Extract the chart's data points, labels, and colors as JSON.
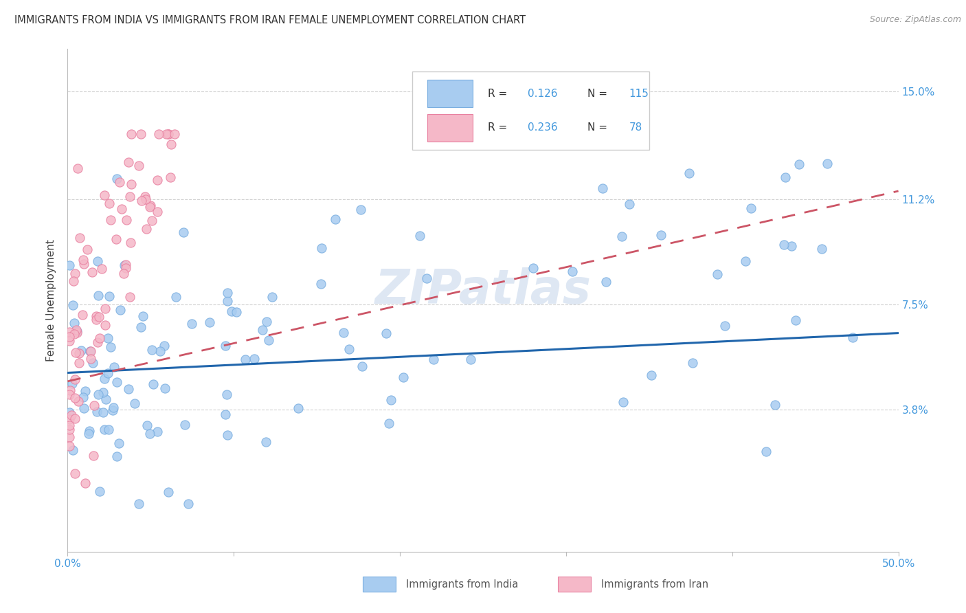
{
  "title": "IMMIGRANTS FROM INDIA VS IMMIGRANTS FROM IRAN FEMALE UNEMPLOYMENT CORRELATION CHART",
  "source": "Source: ZipAtlas.com",
  "ylabel": "Female Unemployment",
  "xlim": [
    0.0,
    0.5
  ],
  "ylim": [
    -0.012,
    0.165
  ],
  "yticks": [
    0.038,
    0.075,
    0.112,
    0.15
  ],
  "ytick_labels": [
    "3.8%",
    "7.5%",
    "11.2%",
    "15.0%"
  ],
  "R_india": 0.126,
  "N_india": 115,
  "R_iran": 0.236,
  "N_iran": 78,
  "color_india": "#A8CCF0",
  "color_iran": "#F5B8C8",
  "edge_india": "#7AAEE0",
  "edge_iran": "#E880A0",
  "line_color_india": "#2166ac",
  "line_color_iran": "#cc5566",
  "background_color": "#ffffff",
  "grid_color": "#cccccc",
  "watermark": "ZIPatlas",
  "tick_label_color": "#4499dd",
  "title_color": "#333333"
}
